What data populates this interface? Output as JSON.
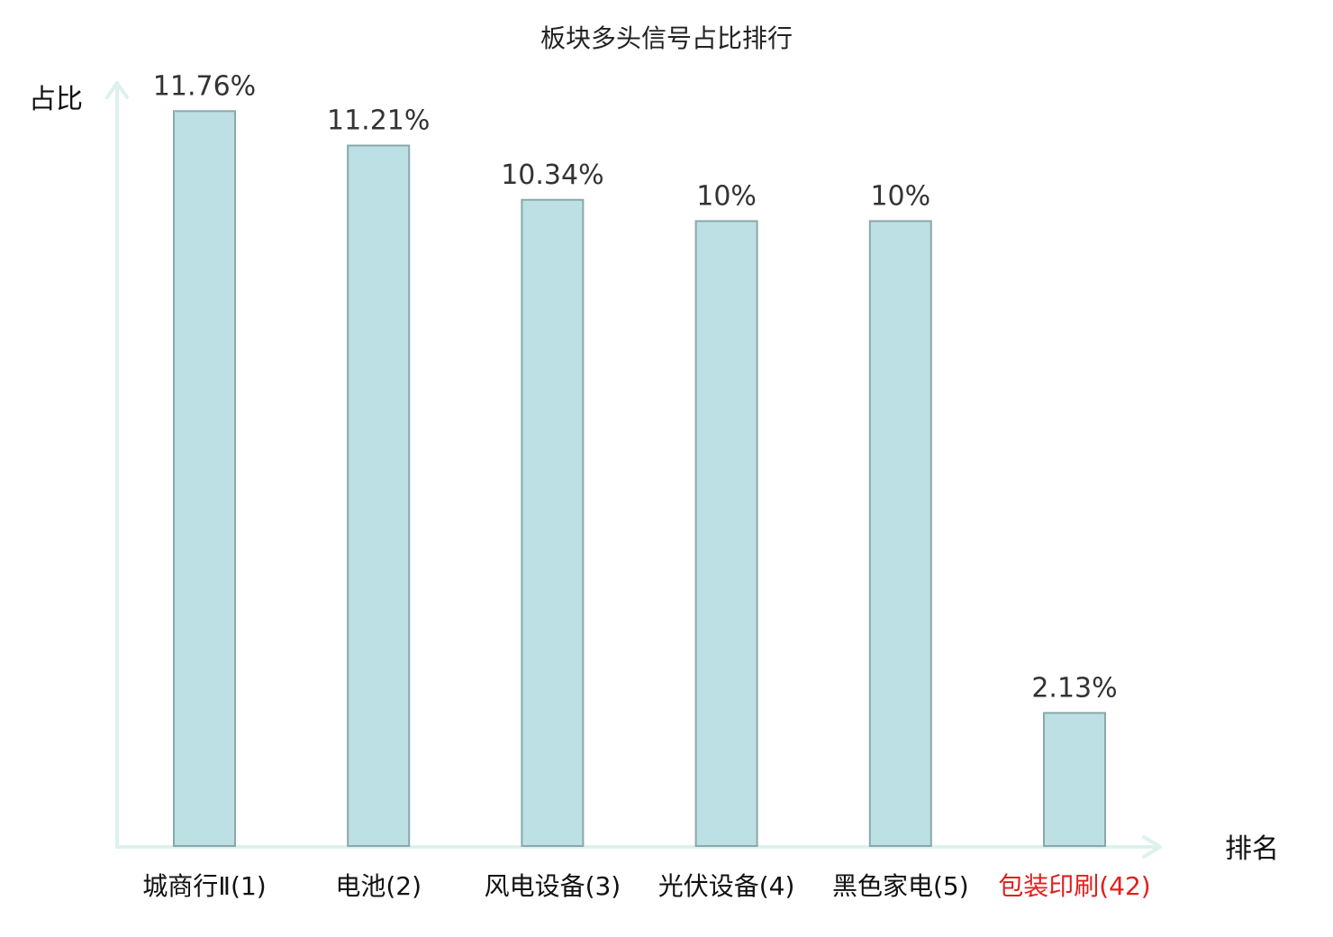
{
  "chart_data": {
    "type": "bar",
    "title": "板块多头信号占比排行",
    "ylabel": "占比",
    "xlabel": "排名",
    "categories": [
      "城商行Ⅱ(1)",
      "电池(2)",
      "风电设备(3)",
      "光伏设备(4)",
      "黑色家电(5)",
      "包装印刷(42)"
    ],
    "values": [
      11.76,
      11.21,
      10.34,
      10,
      10,
      2.13
    ],
    "value_labels": [
      "11.76%",
      "11.21%",
      "10.34%",
      "10%",
      "10%",
      "2.13%"
    ],
    "highlight_index": 5,
    "ylim": [
      0,
      12.5
    ],
    "grid": false,
    "colors": {
      "bar_fill": "#bce0e3",
      "bar_stroke": "#8aa8aa",
      "axis": "#ddf1ef",
      "highlight_text": "#e0201e"
    }
  }
}
